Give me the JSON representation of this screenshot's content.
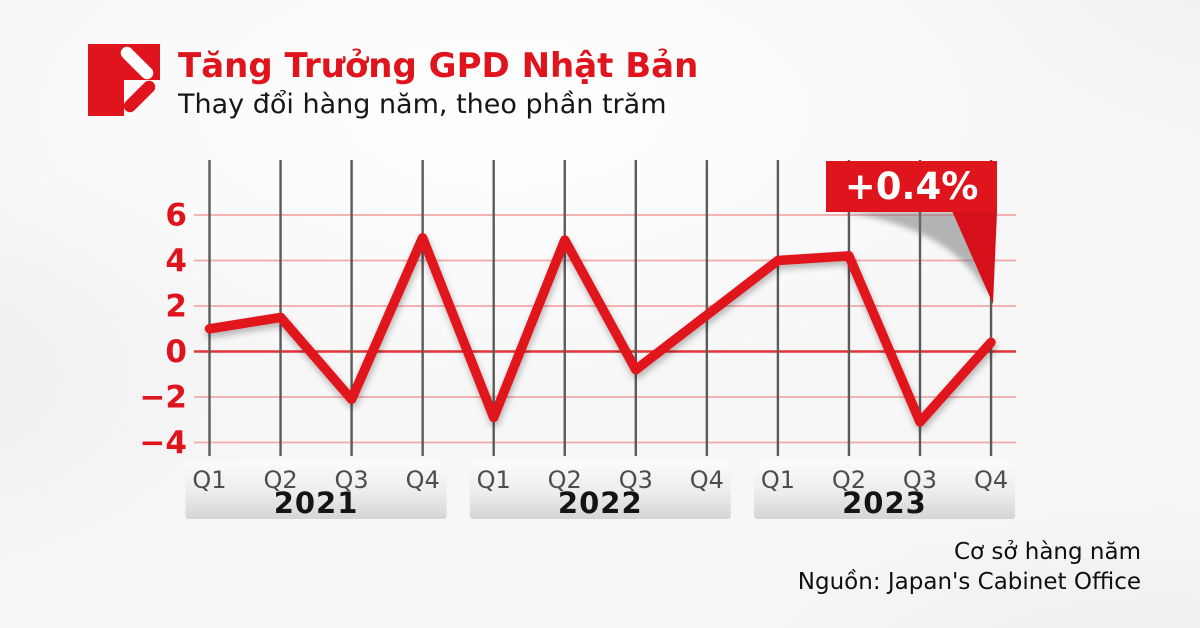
{
  "header": {
    "title": "Tăng Trưởng GPD Nhật Bản",
    "subtitle": "Thay đổi hàng năm, theo phần trăm"
  },
  "chart_data": {
    "type": "line",
    "title": "Tăng Trưởng GPD Nhật Bản",
    "subtitle": "Thay đổi hàng năm, theo phần trăm",
    "unit": "percent",
    "categories": [
      "2021 Q1",
      "2021 Q2",
      "2021 Q3",
      "2021 Q4",
      "2022 Q1",
      "2022 Q2",
      "2022 Q3",
      "2022 Q4",
      "2023 Q1",
      "2023 Q2",
      "2023 Q3",
      "2023 Q4"
    ],
    "values": [
      1.0,
      1.5,
      -2.1,
      5.0,
      -2.9,
      4.9,
      -0.8,
      1.6,
      4.0,
      4.2,
      -3.1,
      0.4
    ],
    "years": [
      {
        "label": "2021",
        "quarters": [
          "Q1",
          "Q2",
          "Q3",
          "Q4"
        ],
        "values": [
          1.0,
          1.5,
          -2.1,
          5.0
        ]
      },
      {
        "label": "2022",
        "quarters": [
          "Q1",
          "Q2",
          "Q3",
          "Q4"
        ],
        "values": [
          -2.9,
          4.9,
          -0.8,
          1.6
        ]
      },
      {
        "label": "2023",
        "quarters": [
          "Q1",
          "Q2",
          "Q3",
          "Q4"
        ],
        "values": [
          4.0,
          4.2,
          -3.1,
          0.4
        ]
      }
    ],
    "y_ticks": [
      6,
      4,
      2,
      0,
      -2,
      -4
    ],
    "y_tick_labels": [
      "6",
      "4",
      "2",
      "0",
      "−2",
      "−4"
    ],
    "ylim": [
      -4.8,
      7
    ],
    "grid": {
      "horizontal": true,
      "vertical": true
    },
    "legend_position": "none",
    "callout": {
      "label": "+0.4%",
      "target": "2023 Q4"
    },
    "colors": {
      "line": "#e0141c",
      "badge": "#e0141c",
      "badge_tail": "#d6101a",
      "badge_text": "#ffffff",
      "grid_light": "#f3a9a9",
      "grid_zero": "#e23434",
      "vline": "#5b5b5b",
      "tick": "#e0141c",
      "quarter": "#4d4d4d",
      "year": "#141414"
    }
  },
  "footer": {
    "line1": "Cơ sở hàng năm",
    "line2": "Nguồn: Japan's Cabinet Office"
  }
}
